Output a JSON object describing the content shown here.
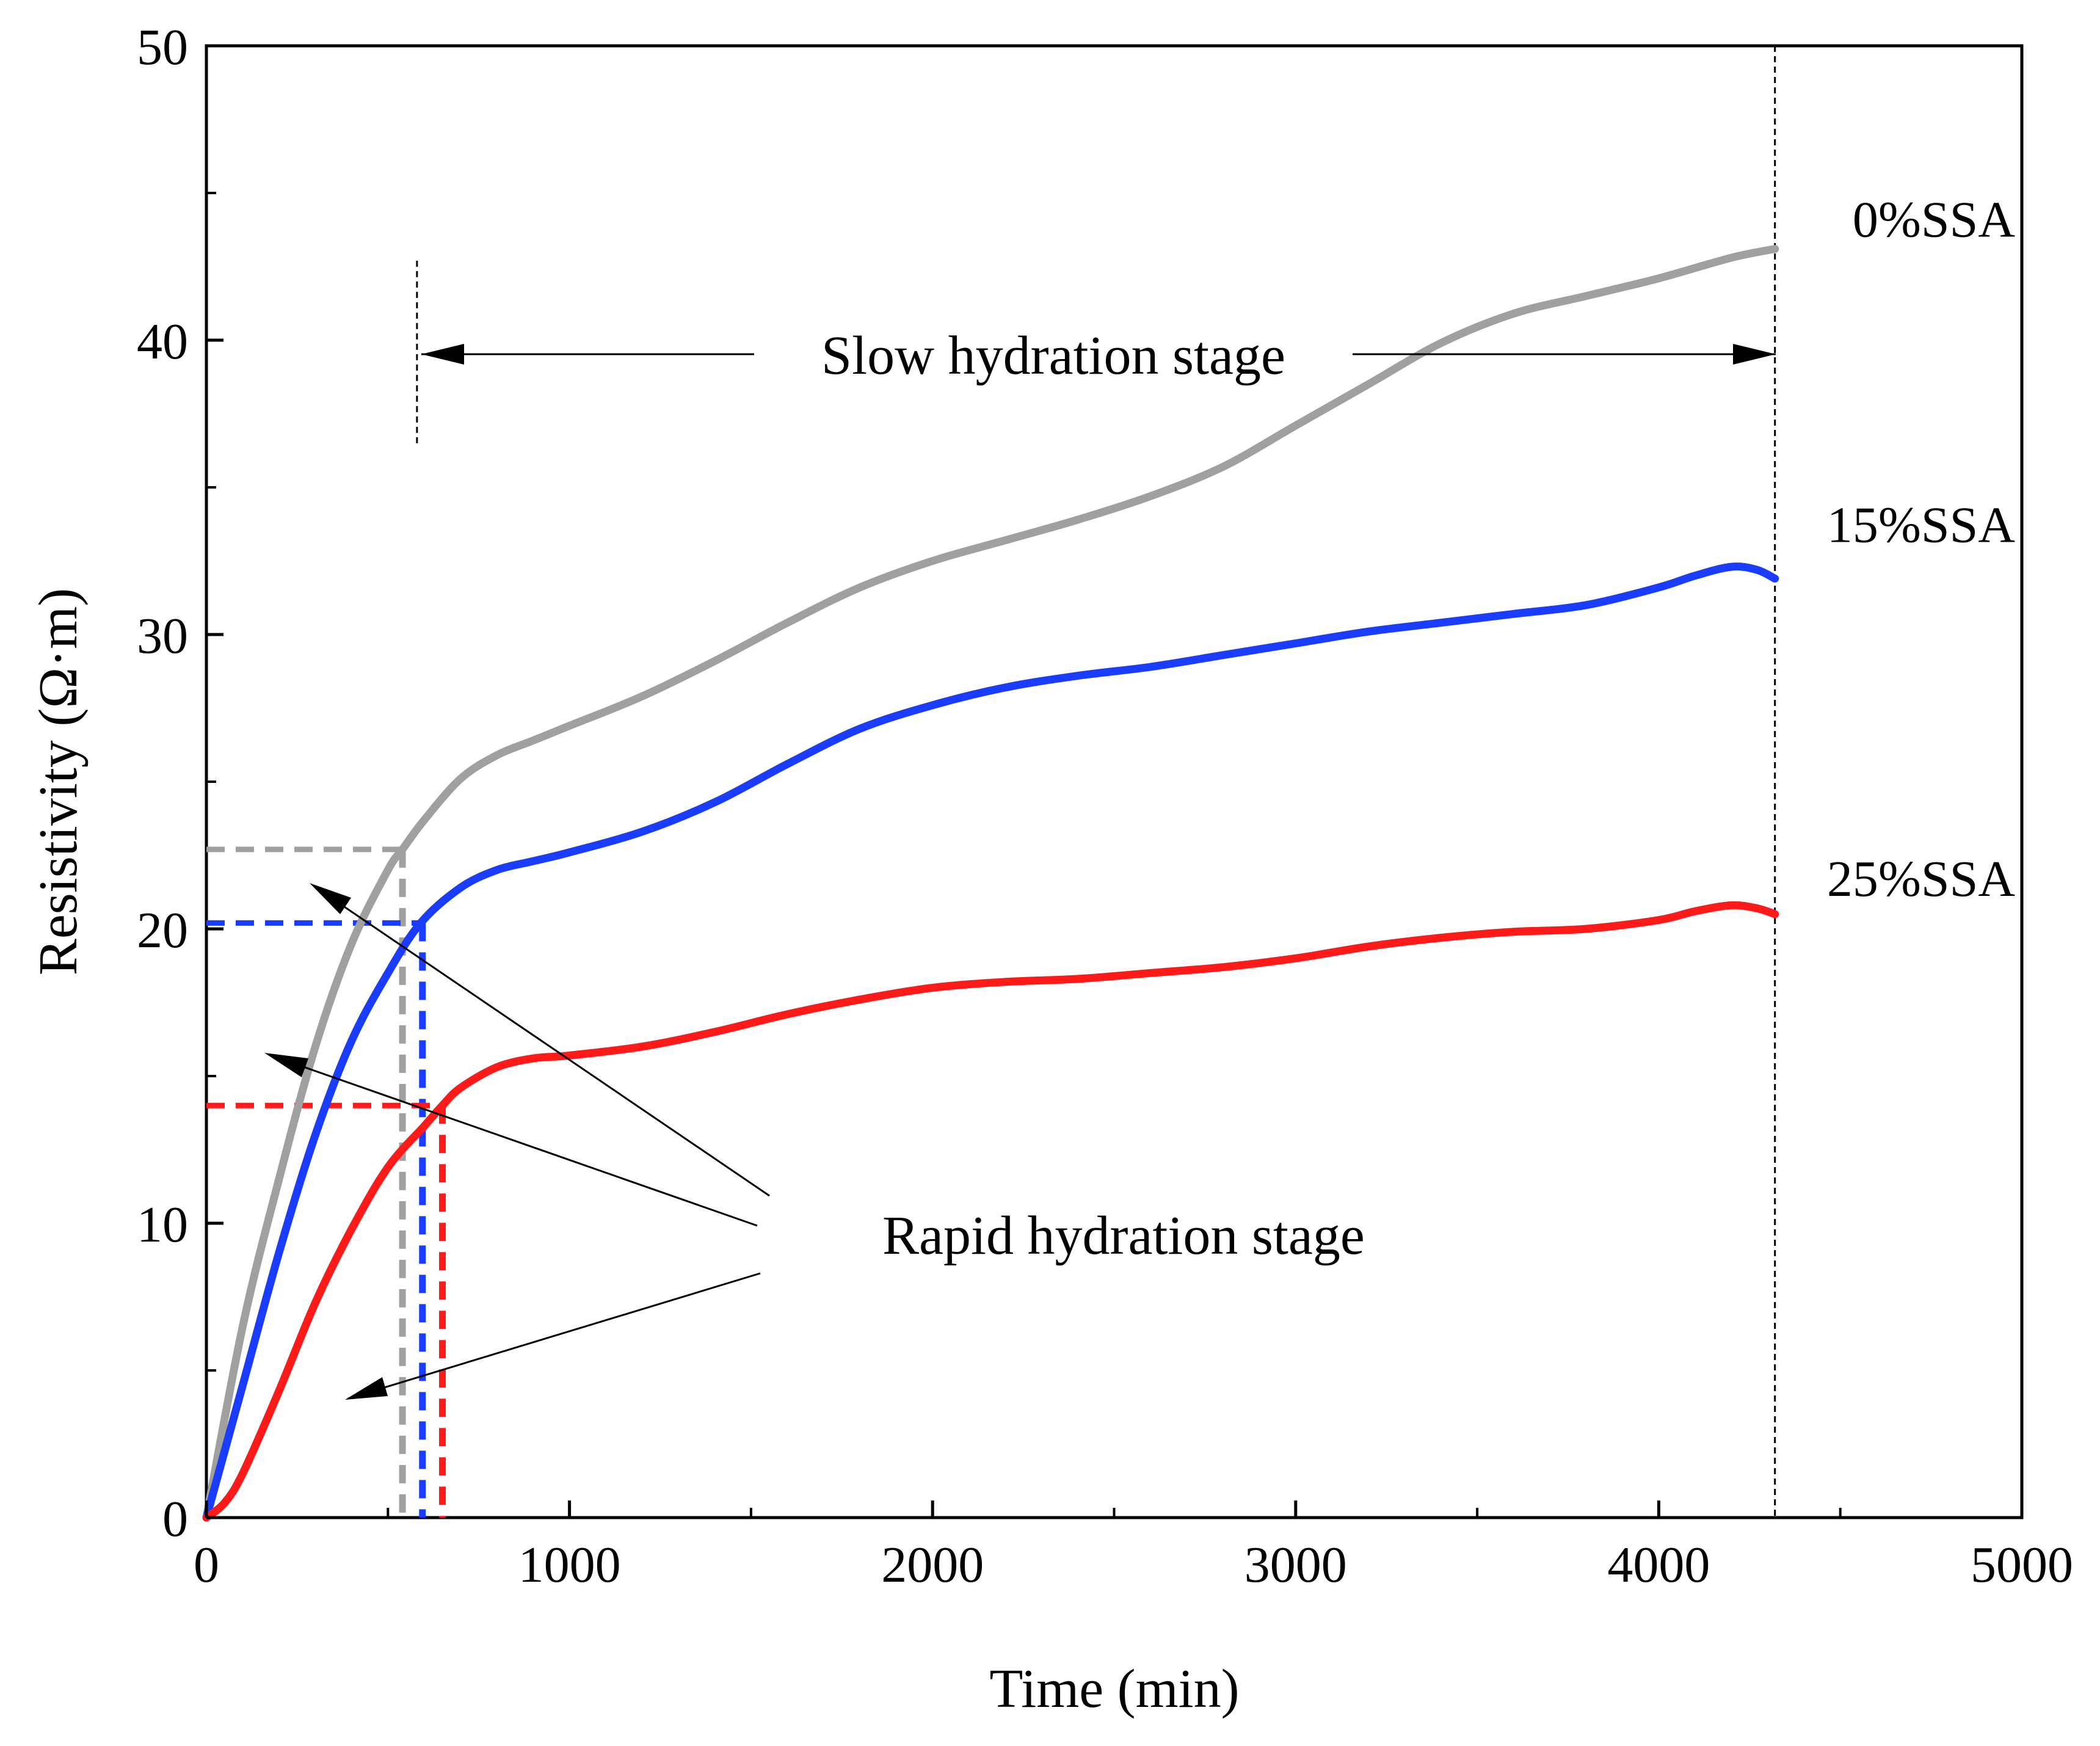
{
  "chart_data": {
    "type": "line",
    "title": "",
    "xlabel": "Time (min)",
    "ylabel": "Resistivity (Ω·m)",
    "xlim": [
      0,
      5000
    ],
    "ylim": [
      0,
      50
    ],
    "xticks": [
      0,
      1000,
      2000,
      3000,
      4000,
      5000
    ],
    "yticks": [
      0,
      10,
      20,
      30,
      40,
      50
    ],
    "grid": false,
    "legend": "inline labels at right end of curves",
    "series": [
      {
        "name": "0%SSA",
        "color": "#a0a0a0",
        "x": [
          0,
          100,
          200,
          300,
          400,
          500,
          540,
          600,
          700,
          800,
          900,
          1000,
          1200,
          1400,
          1600,
          1800,
          2000,
          2200,
          2400,
          2600,
          2800,
          3000,
          3200,
          3400,
          3600,
          3800,
          4000,
          4200,
          4320
        ],
        "y": [
          0,
          6.5,
          11.5,
          16,
          19.5,
          22,
          22.7,
          23.7,
          25.1,
          25.9,
          26.4,
          26.9,
          27.9,
          29.1,
          30.4,
          31.6,
          32.5,
          33.2,
          33.9,
          34.7,
          35.7,
          37.1,
          38.5,
          39.9,
          40.9,
          41.5,
          42.1,
          42.8,
          43.1
        ]
      },
      {
        "name": "15%SSA",
        "color": "#1a3cff",
        "x": [
          0,
          100,
          200,
          300,
          400,
          500,
          590,
          700,
          800,
          900,
          1000,
          1200,
          1400,
          1600,
          1800,
          2000,
          2200,
          2400,
          2600,
          2800,
          3000,
          3200,
          3400,
          3600,
          3800,
          4000,
          4100,
          4200,
          4270,
          4320
        ],
        "y": [
          0,
          4.5,
          9,
          13,
          16.2,
          18.5,
          20.2,
          21.4,
          22,
          22.3,
          22.6,
          23.3,
          24.3,
          25.6,
          26.8,
          27.6,
          28.2,
          28.6,
          28.9,
          29.3,
          29.7,
          30.1,
          30.4,
          30.7,
          31.0,
          31.6,
          32.0,
          32.3,
          32.2,
          31.9
        ]
      },
      {
        "name": "25%SSA",
        "color": "#ff1a1a",
        "x": [
          0,
          50,
          100,
          200,
          300,
          400,
          500,
          600,
          650,
          700,
          800,
          900,
          1000,
          1200,
          1400,
          1600,
          1800,
          2000,
          2200,
          2400,
          2600,
          2800,
          3000,
          3200,
          3400,
          3600,
          3800,
          4000,
          4100,
          4200,
          4270,
          4320
        ],
        "y": [
          0,
          0.5,
          1.5,
          4.3,
          7.3,
          9.8,
          11.9,
          13.3,
          14.0,
          14.6,
          15.3,
          15.6,
          15.7,
          16.0,
          16.5,
          17.1,
          17.6,
          18.0,
          18.2,
          18.3,
          18.5,
          18.7,
          19.0,
          19.4,
          19.7,
          19.9,
          20.0,
          20.3,
          20.6,
          20.8,
          20.7,
          20.5
        ]
      }
    ],
    "reference_lines": [
      {
        "series": "0%SSA",
        "x": 540,
        "y": 22.7,
        "color": "#a0a0a0"
      },
      {
        "series": "15%SSA",
        "x": 595,
        "y": 20.2,
        "color": "#1a3cff"
      },
      {
        "series": "25%SSA",
        "x": 650,
        "y": 14.0,
        "color": "#ff1a1a"
      }
    ],
    "stage_boundaries": {
      "start_x": 580,
      "end_x": 4320
    },
    "annotations": {
      "slow": "Slow hydration stage",
      "rapid": "Rapid hydration stage"
    }
  }
}
